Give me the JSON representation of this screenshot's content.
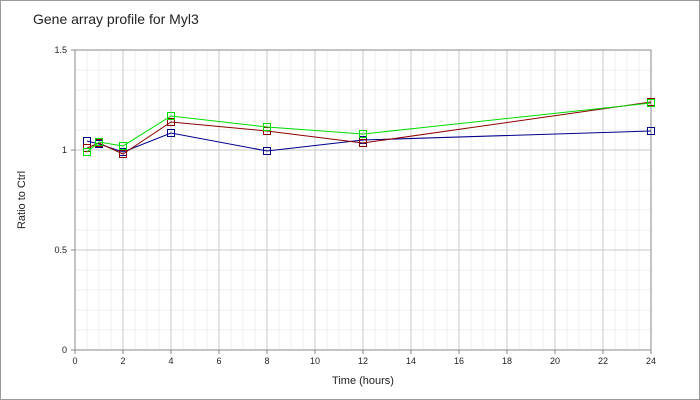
{
  "chart_data": {
    "type": "line",
    "title": "Gene array profile for Myl3",
    "xlabel": "Time (hours)",
    "ylabel": "Ratio to Ctrl",
    "xlim": [
      0,
      24
    ],
    "ylim": [
      0,
      1.5
    ],
    "x_ticks": [
      0,
      2,
      4,
      6,
      8,
      10,
      12,
      14,
      16,
      18,
      20,
      22,
      24
    ],
    "y_ticks": [
      0,
      0.5,
      1,
      1.5
    ],
    "x_tick_labels": [
      "0",
      "2",
      "4",
      "6",
      "8",
      "10",
      "12",
      "14",
      "16",
      "18",
      "20",
      "22",
      "24"
    ],
    "y_tick_labels": [
      "0",
      "0.5",
      "1",
      "1.5"
    ],
    "grid": true,
    "legend": "none",
    "series": [
      {
        "color": "#00008b",
        "x": [
          0.5,
          1,
          2,
          4,
          8,
          12,
          24
        ],
        "y": [
          1.045,
          1.03,
          0.99,
          1.085,
          0.995,
          1.05,
          1.095
        ]
      },
      {
        "color": "#8b0000",
        "x": [
          0.5,
          1,
          2,
          4,
          8,
          12,
          24
        ],
        "y": [
          1.01,
          1.035,
          0.98,
          1.14,
          1.095,
          1.035,
          1.24
        ]
      },
      {
        "color": "#00dd00",
        "x": [
          0.5,
          1,
          2,
          4,
          8,
          12,
          24
        ],
        "y": [
          0.99,
          1.04,
          1.02,
          1.17,
          1.115,
          1.08,
          1.235
        ]
      }
    ]
  }
}
